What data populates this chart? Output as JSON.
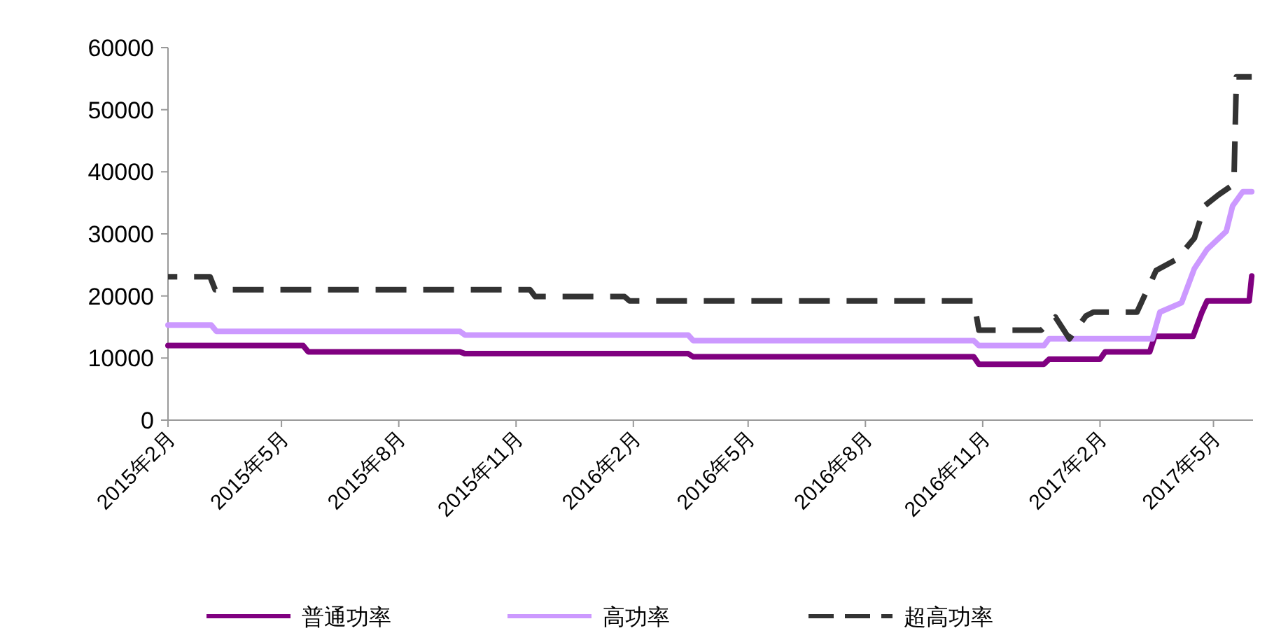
{
  "chart_data": {
    "type": "line",
    "xlim": [
      "2015-02-01",
      "2017-06-01"
    ],
    "ylim": [
      0,
      60000
    ],
    "yticks": [
      0,
      10000,
      20000,
      30000,
      40000,
      50000,
      60000
    ],
    "xticks": [
      {
        "value": "2015-02-01",
        "label": "2015年2月"
      },
      {
        "value": "2015-05-01",
        "label": "2015年5月"
      },
      {
        "value": "2015-08-01",
        "label": "2015年8月"
      },
      {
        "value": "2015-11-01",
        "label": "2015年11月"
      },
      {
        "value": "2016-02-01",
        "label": "2016年2月"
      },
      {
        "value": "2016-05-01",
        "label": "2016年5月"
      },
      {
        "value": "2016-08-01",
        "label": "2016年8月"
      },
      {
        "value": "2016-11-01",
        "label": "2016年11月"
      },
      {
        "value": "2017-02-01",
        "label": "2017年2月"
      },
      {
        "value": "2017-05-01",
        "label": "2017年5月"
      }
    ],
    "legend": "bottom",
    "series": [
      {
        "name": "普通功率",
        "color": "#800080",
        "line_style": "solid",
        "x": [
          "2015-02-01",
          "2015-05-18",
          "2015-05-22",
          "2015-09-18",
          "2015-09-22",
          "2016-03-15",
          "2016-03-19",
          "2016-10-25",
          "2016-10-29",
          "2016-12-19",
          "2016-12-23",
          "2017-02-01",
          "2017-02-05",
          "2017-03-12",
          "2017-03-16",
          "2017-04-15",
          "2017-04-22",
          "2017-04-26",
          "2017-05-29",
          "2017-05-31"
        ],
        "values": [
          12000,
          12000,
          11000,
          11000,
          10700,
          10700,
          10200,
          10200,
          9000,
          9000,
          9800,
          9800,
          11000,
          11000,
          13500,
          13500,
          17400,
          19200,
          19200,
          23200
        ]
      },
      {
        "name": "高功率",
        "color": "#cc99ff",
        "line_style": "solid",
        "x": [
          "2015-02-01",
          "2015-03-07",
          "2015-03-11",
          "2015-09-18",
          "2015-09-22",
          "2016-03-15",
          "2016-03-19",
          "2016-10-25",
          "2016-10-29",
          "2016-12-19",
          "2016-12-23",
          "2017-03-14",
          "2017-03-20",
          "2017-04-06",
          "2017-04-16",
          "2017-04-26",
          "2017-05-11",
          "2017-05-16",
          "2017-05-24",
          "2017-05-31"
        ],
        "values": [
          15300,
          15300,
          14300,
          14300,
          13700,
          13700,
          12800,
          12800,
          12000,
          12000,
          13100,
          13100,
          17400,
          18900,
          24400,
          27500,
          30400,
          34500,
          36800,
          36800
        ]
      },
      {
        "name": "超高功率",
        "color": "#333333",
        "line_style": "dashed",
        "x": [
          "2015-02-01",
          "2015-03-06",
          "2015-03-10",
          "2015-11-12",
          "2015-11-16",
          "2016-01-25",
          "2016-01-29",
          "2016-10-25",
          "2016-10-29",
          "2016-12-17",
          "2016-12-28",
          "2017-01-08",
          "2017-01-21",
          "2017-01-27",
          "2017-03-02",
          "2017-03-17",
          "2017-04-02",
          "2017-04-16",
          "2017-04-24",
          "2017-05-05",
          "2017-05-17",
          "2017-05-19",
          "2017-05-31"
        ],
        "values": [
          23100,
          23100,
          21000,
          21000,
          19900,
          19900,
          19200,
          19200,
          14500,
          14500,
          16600,
          13100,
          16800,
          17400,
          17400,
          24100,
          25900,
          29300,
          34500,
          36300,
          38000,
          55300,
          55300
        ]
      }
    ]
  }
}
